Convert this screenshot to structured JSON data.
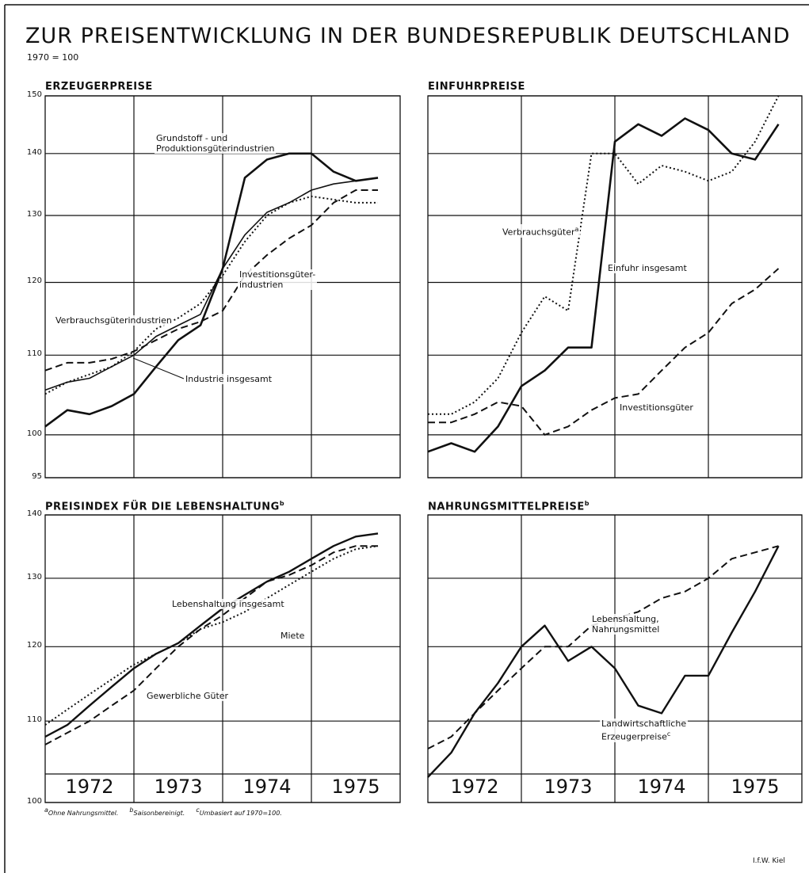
{
  "title": "ZUR PREISENTWICKLUNG IN DER BUNDESREPUBLIK DEUTSCHLAND",
  "subtitle": "1970 = 100",
  "footnotes": [
    {
      "mark": "a",
      "text": "Ohne Nahrungsmittel."
    },
    {
      "mark": "b",
      "text": "Saisonbereinigt."
    },
    {
      "mark": "c",
      "text": "Umbasiert auf 1970=100."
    }
  ],
  "credit": "I.f.W. Kiel",
  "chart_data": [
    {
      "type": "line",
      "title": "ERZEUGERPREISE",
      "log_scale": true,
      "grid": true,
      "show_ytick_labels": true,
      "ylim": [
        95,
        150
      ],
      "yticks": [
        95,
        100,
        110,
        120,
        130,
        140,
        150
      ],
      "series": [
        {
          "name": "Grundstoff - und\nProduktionsgüterindustrien",
          "color": "#111111",
          "style": "solid",
          "width": 2.6,
          "values": [
            101,
            103,
            102.5,
            103.5,
            105,
            108.5,
            112,
            114,
            122,
            136,
            139,
            140,
            140,
            137,
            135.5,
            136
          ]
        },
        {
          "name": "Industrie insgesamt",
          "color": "#111111",
          "style": "solid",
          "width": 1.6,
          "values": [
            105.5,
            106.5,
            107,
            108.5,
            110,
            112.5,
            114,
            115.5,
            122,
            127,
            130.5,
            132,
            134,
            135,
            135.5,
            136
          ]
        },
        {
          "name": "Verbrauchsgüterindustrien",
          "color": "#111111",
          "style": "dotted",
          "width": 2,
          "values": [
            105,
            106.5,
            107.5,
            108.5,
            110.5,
            113.5,
            115,
            117,
            121,
            126,
            130,
            132,
            133,
            132.5,
            132,
            132
          ]
        },
        {
          "name": "Investitionsgüter-\nindustrien",
          "color": "#111111",
          "style": "dashed",
          "width": 2,
          "values": [
            108,
            109,
            109,
            109.5,
            110.5,
            112,
            113.5,
            114.5,
            116,
            121,
            124,
            126.5,
            128.5,
            132,
            134,
            134
          ]
        }
      ]
    },
    {
      "type": "line",
      "title": "EINFUHRPREISE",
      "log_scale": true,
      "grid": true,
      "show_ytick_labels": false,
      "ylim": [
        95,
        150
      ],
      "yticks": [
        95,
        100,
        110,
        120,
        130,
        140,
        150
      ],
      "series": [
        {
          "name": "Einfuhr insgesamt",
          "color": "#111111",
          "style": "solid",
          "width": 2.6,
          "values": [
            98,
            99,
            98,
            101,
            106,
            108,
            111,
            111,
            142,
            145,
            143,
            146,
            144,
            140,
            139,
            145
          ]
        },
        {
          "name": "Verbrauchsgüter",
          "note": "a",
          "color": "#111111",
          "style": "dotted",
          "width": 2,
          "values": [
            102.5,
            102.5,
            104,
            107,
            113,
            118,
            116,
            140,
            140,
            135,
            138,
            137,
            135.5,
            137,
            142,
            150
          ]
        },
        {
          "name": "Investitionsgüter",
          "color": "#111111",
          "style": "dashed",
          "width": 2,
          "values": [
            101.5,
            101.5,
            102.5,
            104,
            103.5,
            100,
            101,
            103,
            104.5,
            105,
            108,
            111,
            113,
            117,
            119,
            122
          ]
        }
      ]
    },
    {
      "type": "line",
      "title": "PREISINDEX FÜR DIE LEBENSHALTUNG",
      "title_note": "b",
      "log_scale": true,
      "grid": true,
      "show_ytick_labels": true,
      "ylim": [
        100,
        140
      ],
      "yticks": [
        100,
        110,
        120,
        130,
        140
      ],
      "categories": [
        "1972",
        null,
        null,
        null,
        "1973",
        null,
        null,
        null,
        "1974",
        null,
        null,
        null,
        "1975",
        null,
        null,
        null
      ],
      "series": [
        {
          "name": "Lebenshaltung insgesamt",
          "color": "#111111",
          "style": "solid",
          "width": 2.4,
          "values": [
            108,
            109.5,
            112,
            114.5,
            117,
            119,
            120.5,
            123,
            125.5,
            127.5,
            129.5,
            131,
            133,
            135,
            136.5,
            137
          ]
        },
        {
          "name": "Miete",
          "color": "#111111",
          "style": "dotted",
          "width": 2,
          "values": [
            109.5,
            111.5,
            113.5,
            115.5,
            117.5,
            119,
            120.5,
            122.5,
            123.5,
            125,
            127,
            129,
            131,
            133,
            134.5,
            135
          ]
        },
        {
          "name": "Gewerbliche Güter",
          "color": "#111111",
          "style": "dashed",
          "width": 2,
          "values": [
            107,
            108.5,
            110,
            112,
            114,
            117,
            120,
            122.5,
            124.5,
            127,
            129.5,
            130.5,
            132,
            134,
            135,
            135
          ]
        }
      ]
    },
    {
      "type": "line",
      "title": "NAHRUNGSMITTELPREISE",
      "title_note": "b",
      "log_scale": true,
      "grid": true,
      "show_ytick_labels": false,
      "ylim": [
        100,
        140
      ],
      "yticks": [
        100,
        110,
        120,
        130,
        140
      ],
      "categories": [
        "1972",
        null,
        null,
        null,
        "1973",
        null,
        null,
        null,
        "1974",
        null,
        null,
        null,
        "1975",
        null,
        null,
        null
      ],
      "series": [
        {
          "name": "Landwirtschaftliche\nErzeugerpreise",
          "note": "c",
          "color": "#111111",
          "style": "solid",
          "width": 2.4,
          "values": [
            103,
            106,
            111,
            115,
            120,
            123,
            118,
            120,
            117,
            112,
            111,
            116,
            116,
            122,
            128,
            135
          ]
        },
        {
          "name": "Lebenshaltung,\nNahrungsmittel",
          "color": "#111111",
          "style": "dashed",
          "width": 2,
          "values": [
            106.5,
            108,
            111,
            114,
            117,
            120,
            120,
            123,
            124,
            125,
            127,
            128,
            130,
            133,
            134,
            135
          ]
        }
      ]
    }
  ]
}
